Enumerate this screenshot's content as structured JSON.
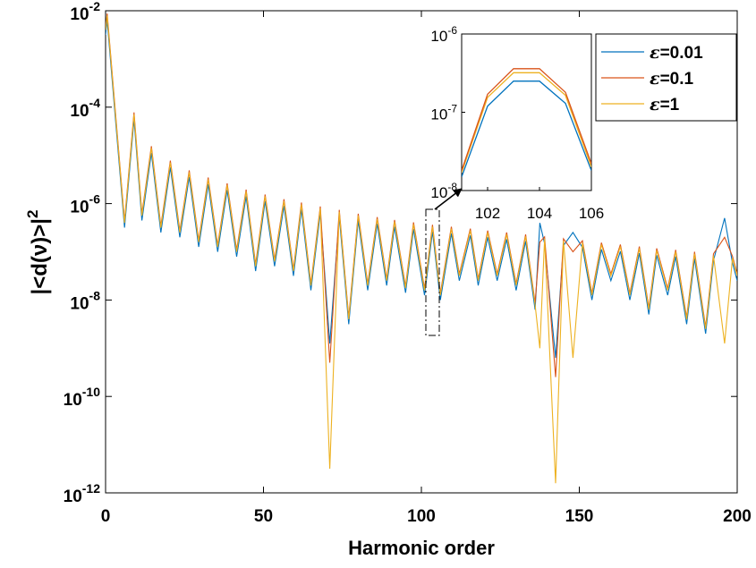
{
  "chart_data": {
    "type": "line",
    "xlabel": "Harmonic order",
    "ylabel": "|<d(ν)>|",
    "ylabel_sup": "2",
    "xlim": [
      0,
      200
    ],
    "ylim": [
      1e-12,
      0.01
    ],
    "yscale": "log",
    "xticks": [
      "0",
      "50",
      "100",
      "150",
      "200"
    ],
    "yticks": [
      {
        "base": "10",
        "exp": "-12"
      },
      {
        "base": "10",
        "exp": "-10"
      },
      {
        "base": "10",
        "exp": "-8"
      },
      {
        "base": "10",
        "exp": "-6"
      },
      {
        "base": "10",
        "exp": "-4"
      },
      {
        "base": "10",
        "exp": "-2"
      }
    ],
    "grid": false,
    "legend_position": "top-right",
    "series": [
      {
        "name": "=0.01",
        "symbol": "ε",
        "color": "#0072BD",
        "offset": 0.0
      },
      {
        "name": "=0.1",
        "symbol": "ε",
        "color": "#D95319",
        "offset": 0.14
      },
      {
        "name": "=1",
        "symbol": "ε",
        "color": "#EDB120",
        "offset": 0.1
      }
    ],
    "peaks": [
      [
        0.5,
        -2.2
      ],
      [
        9,
        -4.25
      ],
      [
        14.5,
        -4.95
      ],
      [
        20.5,
        -5.25
      ],
      [
        26.5,
        -5.45
      ],
      [
        32.5,
        -5.6
      ],
      [
        38.5,
        -5.72
      ],
      [
        44.5,
        -5.85
      ],
      [
        50.5,
        -5.95
      ],
      [
        56.5,
        -6.05
      ],
      [
        62,
        -6.12
      ],
      [
        68,
        -6.2
      ],
      [
        74,
        -6.27
      ],
      [
        80,
        -6.35
      ],
      [
        86,
        -6.42
      ],
      [
        91.5,
        -6.48
      ],
      [
        97.5,
        -6.53
      ],
      [
        103.5,
        -6.58
      ],
      [
        109.5,
        -6.62
      ],
      [
        115.5,
        -6.66
      ],
      [
        121,
        -6.7
      ],
      [
        127,
        -6.74
      ],
      [
        133,
        -6.78
      ],
      [
        139,
        -6.83
      ],
      [
        145,
        -6.87
      ],
      [
        151,
        -6.91
      ],
      [
        157,
        -6.95
      ],
      [
        163,
        -6.99
      ],
      [
        169,
        -7.03
      ],
      [
        174.5,
        -7.07
      ],
      [
        180.5,
        -7.1
      ],
      [
        186.5,
        -7.14
      ],
      [
        192.5,
        -7.18
      ],
      [
        198.5,
        -7.23
      ]
    ],
    "troughs": [
      [
        6,
        -6.5
      ],
      [
        11.5,
        -6.35
      ],
      [
        17.5,
        -6.6
      ],
      [
        23.5,
        -6.7
      ],
      [
        29.5,
        -6.9
      ],
      [
        35.5,
        -7.0
      ],
      [
        41.5,
        -7.1
      ],
      [
        47.5,
        -7.4
      ],
      [
        53.5,
        -7.3
      ],
      [
        59.5,
        -7.5
      ],
      [
        65,
        -7.8
      ],
      [
        71,
        -11.5
      ],
      [
        77,
        -8.5
      ],
      [
        83,
        -7.8
      ],
      [
        89,
        -7.7
      ],
      [
        95,
        -7.85
      ],
      [
        101,
        -7.9
      ],
      [
        106,
        -8.0
      ],
      [
        112,
        -7.6
      ],
      [
        118,
        -7.7
      ],
      [
        124,
        -7.6
      ],
      [
        130,
        -7.8
      ],
      [
        136,
        -8.2
      ],
      [
        137.5,
        -9.0
      ],
      [
        142.5,
        -11.8
      ],
      [
        148,
        -9.2
      ],
      [
        154,
        -8.0
      ],
      [
        160,
        -7.6
      ],
      [
        166,
        -8.0
      ],
      [
        172,
        -8.3
      ],
      [
        178,
        -7.9
      ],
      [
        184,
        -8.5
      ],
      [
        190,
        -8.7
      ],
      [
        196,
        -8.9
      ]
    ],
    "inset": {
      "xlim": [
        101,
        106
      ],
      "ylim": [
        1e-08,
        1e-06
      ],
      "xticks": [
        "102",
        "104",
        "106"
      ],
      "yticks": [
        {
          "base": "10",
          "exp": "-8"
        },
        {
          "base": "10",
          "exp": "-7"
        },
        {
          "base": "10",
          "exp": "-6"
        }
      ],
      "x": [
        101,
        102,
        103,
        104,
        105,
        106
      ],
      "series_values": [
        [
          1.5e-08,
          1.2e-07,
          2.5e-07,
          2.5e-07,
          1.3e-07,
          1.8e-08
        ],
        [
          1.8e-08,
          1.7e-07,
          3.6e-07,
          3.6e-07,
          1.8e-07,
          2.2e-08
        ],
        [
          1.7e-08,
          1.55e-07,
          3.2e-07,
          3.2e-07,
          1.65e-07,
          2e-08
        ]
      ]
    }
  }
}
